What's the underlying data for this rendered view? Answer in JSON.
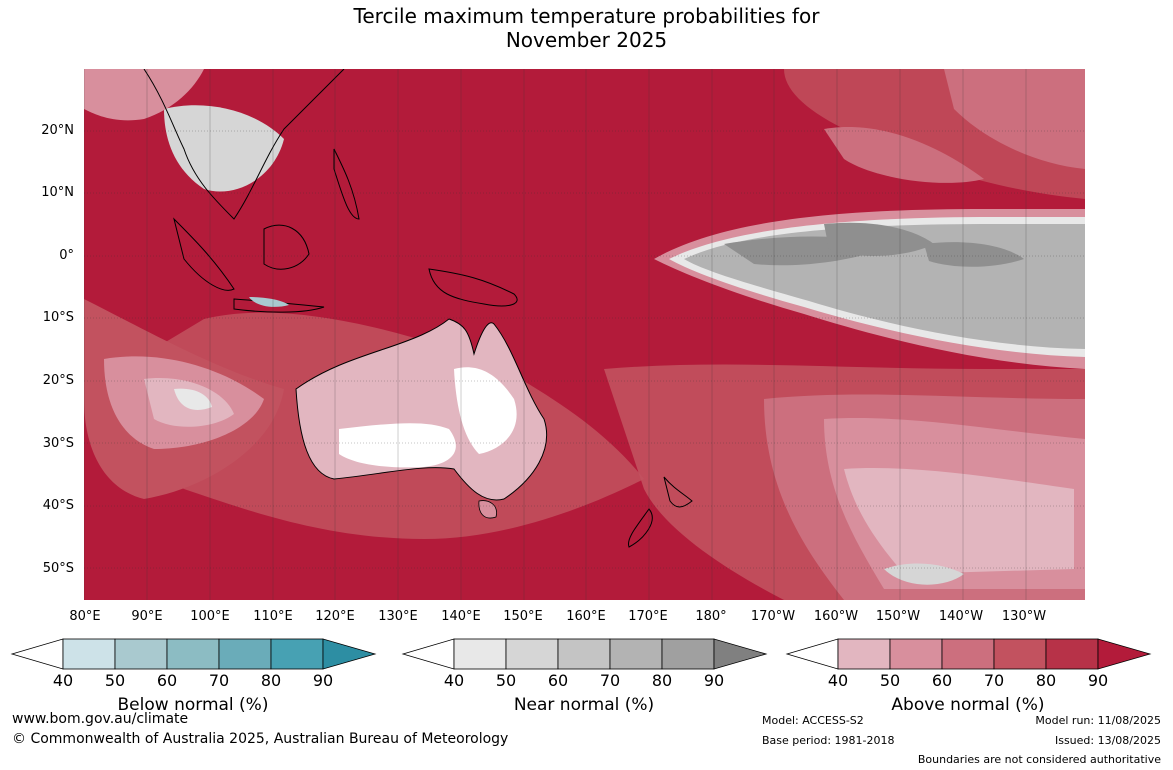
{
  "title": {
    "line1": "Tercile maximum temperature probabilities for",
    "line2": "November 2025"
  },
  "map": {
    "lat_labels": [
      "20°N",
      "10°N",
      "0°",
      "10°S",
      "20°S",
      "30°S",
      "40°S",
      "50°S"
    ],
    "lon_labels": [
      "80°E",
      "90°E",
      "100°E",
      "110°E",
      "120°E",
      "130°E",
      "140°E",
      "150°E",
      "160°E",
      "170°E",
      "180°",
      "170°W",
      "160°W",
      "150°W",
      "140°W",
      "130°W"
    ]
  },
  "legend": [
    {
      "id": "below",
      "caption": "Below normal (%)",
      "ticks": [
        "40",
        "50",
        "60",
        "70",
        "80",
        "90"
      ],
      "colors": [
        "#ffffff",
        "#cde2e8",
        "#a9c9cf",
        "#8cbcc3",
        "#6aacb9",
        "#47a1b3",
        "#2d8ea3"
      ]
    },
    {
      "id": "near",
      "caption": "Near normal (%)",
      "ticks": [
        "40",
        "50",
        "60",
        "70",
        "80",
        "90"
      ],
      "colors": [
        "#ffffff",
        "#e8e8e8",
        "#d6d6d6",
        "#c4c4c4",
        "#b3b3b3",
        "#a0a0a0",
        "#808080"
      ]
    },
    {
      "id": "above",
      "caption": "Above normal (%)",
      "ticks": [
        "40",
        "50",
        "60",
        "70",
        "80",
        "90"
      ],
      "colors": [
        "#ffffff",
        "#e2b6c0",
        "#d88f9d",
        "#cc6f7e",
        "#c2525f",
        "#b73248",
        "#b31b3a"
      ]
    }
  ],
  "footer": {
    "website": "www.bom.gov.au/climate",
    "copyright": "© Commonwealth of Australia 2025, Australian Bureau of Meteorology",
    "model": "Model: ACCESS-S2",
    "base_period": "Base period: 1981-2018",
    "model_run": "Model run: 11/08/2025",
    "issued": "Issued: 13/08/2025",
    "disclaimer": "Boundaries are not considered authoritative"
  }
}
